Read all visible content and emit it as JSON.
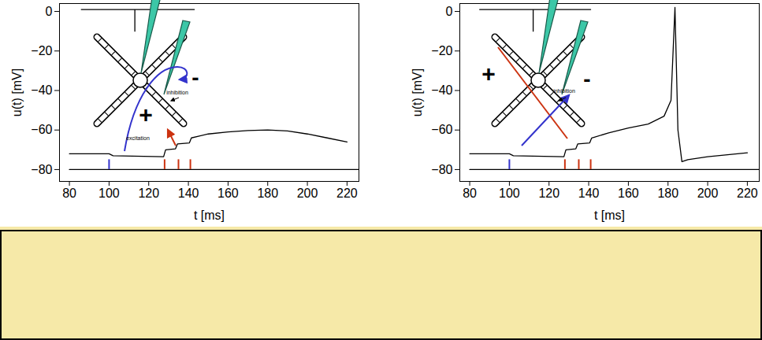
{
  "chart_data": [
    {
      "type": "line",
      "xlabel": "t [ms]",
      "ylabel": "u(t) [mV]",
      "xlim": [
        75,
        226
      ],
      "ylim": [
        -86,
        4
      ],
      "xticks": [
        80,
        100,
        120,
        140,
        160,
        180,
        200,
        220
      ],
      "yticks": [
        -80,
        -60,
        -40,
        -20,
        0
      ],
      "series": [
        {
          "color": "#000000",
          "x": [
            80,
            100,
            102,
            127.5,
            128.5,
            133.5,
            134.5,
            140.5,
            141.5,
            150,
            160,
            170,
            180,
            190,
            200,
            210,
            220
          ],
          "values": [
            -72,
            -72,
            -73,
            -73.5,
            -70,
            -69.5,
            -67,
            -66.5,
            -64,
            -62,
            -61,
            -60.3,
            -60,
            -60.5,
            -62,
            -64,
            -66
          ]
        },
        {
          "color": "#000000",
          "x": [
            86,
            113,
            113,
            113,
            143
          ],
          "values": [
            1,
            1,
            -10,
            1,
            1
          ]
        },
        {
          "color": "#000000",
          "x": [
            80,
            226
          ],
          "values": [
            -80,
            -80
          ]
        }
      ],
      "events": {
        "x": [
          100,
          128,
          135,
          141
        ],
        "colors": [
          "#3333cc",
          "#cc3311",
          "#cc3311",
          "#cc3311"
        ],
        "from": -80,
        "to": -75
      },
      "annotations": [
        "+",
        "-",
        "inhibition",
        "excitation"
      ]
    },
    {
      "type": "line",
      "xlabel": "t [ms]",
      "ylabel": "u(t) [mV]",
      "xlim": [
        75,
        226
      ],
      "ylim": [
        -86,
        4
      ],
      "xticks": [
        80,
        100,
        120,
        140,
        160,
        180,
        200,
        220
      ],
      "yticks": [
        -80,
        -60,
        -40,
        -20,
        0
      ],
      "series": [
        {
          "color": "#000000",
          "x": [
            80,
            100,
            102,
            127.5,
            128.5,
            133.5,
            134.5,
            140.5,
            141.5,
            150,
            160,
            170,
            178,
            181.5,
            183.5,
            185,
            187,
            190,
            200,
            210,
            220
          ],
          "values": [
            -72,
            -72,
            -73,
            -73.5,
            -70,
            -69.5,
            -67,
            -66.5,
            -64,
            -61.5,
            -59,
            -57,
            -53,
            -45,
            2,
            -60,
            -76,
            -75,
            -73.5,
            -72.5,
            -71.5
          ]
        },
        {
          "color": "#000000",
          "x": [
            85,
            112,
            112,
            112,
            141
          ],
          "values": [
            1,
            1,
            -10,
            1,
            1
          ]
        },
        {
          "color": "#000000",
          "x": [
            80,
            226
          ],
          "values": [
            -80,
            -80
          ]
        }
      ],
      "events": {
        "x": [
          100,
          128,
          135,
          141
        ],
        "colors": [
          "#3333cc",
          "#cc3311",
          "#cc3311",
          "#cc3311"
        ],
        "from": -80,
        "to": -75
      },
      "annotations": [
        "+",
        "-",
        "inhibition"
      ]
    }
  ]
}
